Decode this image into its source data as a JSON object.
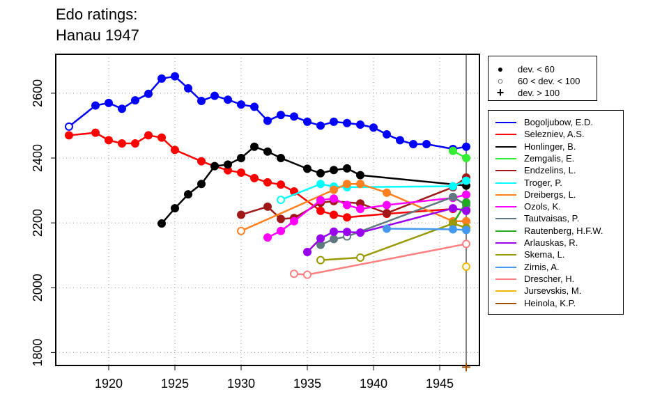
{
  "title_line1": "Edo ratings:",
  "title_line2": "Hanau 1947",
  "chart_data": {
    "type": "line",
    "title": "Edo ratings: Hanau 1947",
    "xlim": [
      1916,
      1948
    ],
    "ylim": [
      1760,
      2720
    ],
    "x_ticks": [
      1920,
      1925,
      1930,
      1935,
      1940,
      1945
    ],
    "y_ticks": [
      1800,
      2000,
      2200,
      2400,
      2600
    ],
    "grid": true,
    "event_year": 1947,
    "deviation_legend": [
      {
        "marker": "filled",
        "label": "dev. < 60"
      },
      {
        "marker": "open",
        "label": "60 < dev. < 100"
      },
      {
        "marker": "plus",
        "label": "dev. > 100"
      }
    ],
    "series": [
      {
        "name": "Bogoljubow, E.D.",
        "color": "#0000ff",
        "points": [
          [
            1917,
            2497,
            "o"
          ],
          [
            1919,
            2562,
            "f"
          ],
          [
            1920,
            2570,
            "f"
          ],
          [
            1921,
            2552,
            "f"
          ],
          [
            1922,
            2578,
            "f"
          ],
          [
            1923,
            2598,
            "f"
          ],
          [
            1924,
            2645,
            "f"
          ],
          [
            1925,
            2652,
            "f"
          ],
          [
            1926,
            2615,
            "f"
          ],
          [
            1927,
            2576,
            "f"
          ],
          [
            1928,
            2592,
            "f"
          ],
          [
            1929,
            2580,
            "f"
          ],
          [
            1930,
            2565,
            "f"
          ],
          [
            1931,
            2558,
            "f"
          ],
          [
            1932,
            2515,
            "f"
          ],
          [
            1933,
            2533,
            "f"
          ],
          [
            1934,
            2528,
            "f"
          ],
          [
            1935,
            2512,
            "f"
          ],
          [
            1936,
            2500,
            "f"
          ],
          [
            1937,
            2512,
            "f"
          ],
          [
            1938,
            2508,
            "f"
          ],
          [
            1939,
            2503,
            "f"
          ],
          [
            1940,
            2494,
            "f"
          ],
          [
            1941,
            2473,
            "f"
          ],
          [
            1942,
            2455,
            "f"
          ],
          [
            1943,
            2443,
            "f"
          ],
          [
            1944,
            2443,
            "f"
          ],
          [
            1946,
            2428,
            "f"
          ],
          [
            1947,
            2435,
            "f"
          ]
        ]
      },
      {
        "name": "Selezniev, A.S.",
        "color": "#ff0000",
        "points": [
          [
            1917,
            2470,
            "f"
          ],
          [
            1919,
            2478,
            "f"
          ],
          [
            1920,
            2455,
            "f"
          ],
          [
            1921,
            2445,
            "f"
          ],
          [
            1922,
            2445,
            "f"
          ],
          [
            1923,
            2470,
            "f"
          ],
          [
            1924,
            2463,
            "f"
          ],
          [
            1925,
            2425,
            "f"
          ],
          [
            1927,
            2390,
            "f"
          ],
          [
            1928,
            2375,
            "f"
          ],
          [
            1929,
            2362,
            "f"
          ],
          [
            1930,
            2355,
            "f"
          ],
          [
            1931,
            2338,
            "f"
          ],
          [
            1932,
            2325,
            "f"
          ],
          [
            1933,
            2318,
            "f"
          ],
          [
            1934,
            2297,
            "f"
          ],
          [
            1936,
            2237,
            "f"
          ],
          [
            1937,
            2225,
            "f"
          ],
          [
            1938,
            2217,
            "f"
          ],
          [
            1941,
            2228,
            "f"
          ],
          [
            1946,
            2243,
            "f"
          ],
          [
            1947,
            2240,
            "f"
          ]
        ]
      },
      {
        "name": "Honlinger, B.",
        "color": "#000000",
        "points": [
          [
            1924,
            2198,
            "f"
          ],
          [
            1925,
            2245,
            "f"
          ],
          [
            1926,
            2288,
            "f"
          ],
          [
            1927,
            2320,
            "f"
          ],
          [
            1928,
            2375,
            "f"
          ],
          [
            1929,
            2380,
            "f"
          ],
          [
            1930,
            2400,
            "f"
          ],
          [
            1931,
            2435,
            "f"
          ],
          [
            1932,
            2420,
            "f"
          ],
          [
            1933,
            2400,
            "f"
          ],
          [
            1935,
            2367,
            "f"
          ],
          [
            1936,
            2353,
            "f"
          ],
          [
            1937,
            2363,
            "f"
          ],
          [
            1938,
            2368,
            "f"
          ],
          [
            1939,
            2347,
            "f"
          ],
          [
            1947,
            2315,
            "f"
          ]
        ]
      },
      {
        "name": "Zemgalis, E.",
        "color": "#33ee33",
        "points": [
          [
            1946,
            2422,
            "f"
          ],
          [
            1947,
            2400,
            "f"
          ]
        ]
      },
      {
        "name": "Endzelins, L.",
        "color": "#a01818",
        "points": [
          [
            1930,
            2225,
            "f"
          ],
          [
            1932,
            2250,
            "f"
          ],
          [
            1933,
            2212,
            "f"
          ],
          [
            1934,
            2215,
            "f"
          ],
          [
            1936,
            2262,
            "f"
          ],
          [
            1937,
            2267,
            "f"
          ],
          [
            1939,
            2260,
            "f"
          ],
          [
            1941,
            2230,
            "f"
          ],
          [
            1946,
            2310,
            "f"
          ],
          [
            1947,
            2340,
            "f"
          ]
        ]
      },
      {
        "name": "Troger, P.",
        "color": "#00ffff",
        "points": [
          [
            1933,
            2271,
            "o"
          ],
          [
            1936,
            2320,
            "f"
          ],
          [
            1937,
            2312,
            "f"
          ],
          [
            1938,
            2310,
            "f"
          ],
          [
            1946,
            2313,
            "f"
          ],
          [
            1947,
            2330,
            "f"
          ]
        ]
      },
      {
        "name": "Dreibergs, L.",
        "color": "#ff8020",
        "points": [
          [
            1930,
            2175,
            "o"
          ],
          [
            1937,
            2302,
            "f"
          ],
          [
            1938,
            2320,
            "f"
          ],
          [
            1939,
            2320,
            "f"
          ],
          [
            1941,
            2293,
            "f"
          ],
          [
            1946,
            2205,
            "f"
          ],
          [
            1947,
            2205,
            "f"
          ]
        ]
      },
      {
        "name": "Ozols, K.",
        "color": "#ff00ff",
        "points": [
          [
            1932,
            2155,
            "f"
          ],
          [
            1933,
            2175,
            "f"
          ],
          [
            1934,
            2205,
            "f"
          ],
          [
            1936,
            2270,
            "f"
          ],
          [
            1937,
            2275,
            "f"
          ],
          [
            1938,
            2255,
            "f"
          ],
          [
            1939,
            2243,
            "f"
          ],
          [
            1941,
            2255,
            "f"
          ],
          [
            1946,
            2277,
            "f"
          ],
          [
            1947,
            2287,
            "f"
          ]
        ]
      },
      {
        "name": "Tautvaisas, P.",
        "color": "#607880",
        "points": [
          [
            1936,
            2132,
            "f"
          ],
          [
            1937,
            2150,
            "f"
          ],
          [
            1938,
            2158,
            "o"
          ],
          [
            1946,
            2280,
            "f"
          ],
          [
            1947,
            2255,
            "f"
          ]
        ]
      },
      {
        "name": "Rautenberg, H.F.W.",
        "color": "#22aa22",
        "points": [
          [
            1946,
            2198,
            "f"
          ],
          [
            1947,
            2263,
            "f"
          ]
        ]
      },
      {
        "name": "Arlauskas, R.",
        "color": "#9900ee",
        "points": [
          [
            1935,
            2110,
            "f"
          ],
          [
            1936,
            2152,
            "f"
          ],
          [
            1937,
            2173,
            "f"
          ],
          [
            1938,
            2172,
            "f"
          ],
          [
            1939,
            2170,
            "f"
          ],
          [
            1946,
            2245,
            "f"
          ],
          [
            1947,
            2237,
            "f"
          ]
        ]
      },
      {
        "name": "Skema, L.",
        "color": "#999900",
        "points": [
          [
            1936,
            2085,
            "o"
          ],
          [
            1939,
            2093,
            "o"
          ],
          [
            1946,
            2198,
            "f"
          ],
          [
            1947,
            2185,
            "f"
          ]
        ]
      },
      {
        "name": "Zirnis, A.",
        "color": "#4499ee",
        "points": [
          [
            1941,
            2182,
            "f"
          ],
          [
            1946,
            2180,
            "f"
          ],
          [
            1947,
            2178,
            "f"
          ]
        ]
      },
      {
        "name": "Drescher, H.",
        "color": "#ff8080",
        "points": [
          [
            1934,
            2043,
            "o"
          ],
          [
            1935,
            2040,
            "o"
          ],
          [
            1947,
            2135,
            "o"
          ]
        ]
      },
      {
        "name": "Jursevskis, M.",
        "color": "#f0b800",
        "points": [
          [
            1947,
            2065,
            "o"
          ]
        ]
      },
      {
        "name": "Heinola, K.P.",
        "color": "#a05000",
        "points": [
          [
            1947,
            1755,
            "p"
          ]
        ]
      }
    ]
  }
}
